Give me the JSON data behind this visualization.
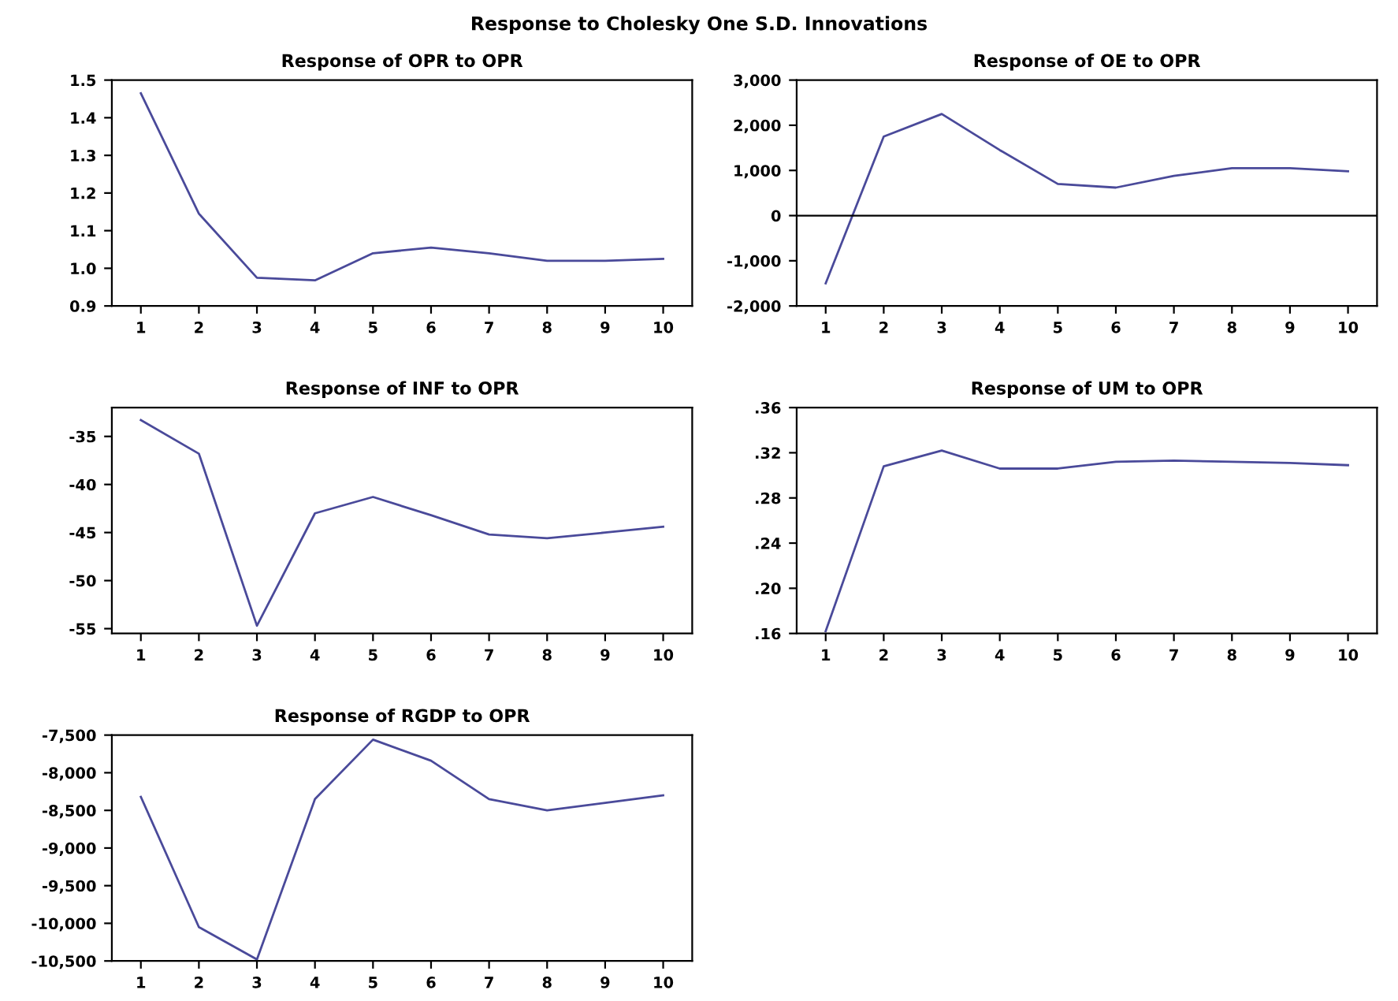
{
  "chart_data": [
    {
      "type": "line",
      "title": "Response of OPR to OPR",
      "x": [
        1,
        2,
        3,
        4,
        5,
        6,
        7,
        8,
        9,
        10
      ],
      "xlim": [
        0.5,
        10.5
      ],
      "xticks": [
        1,
        2,
        3,
        4,
        5,
        6,
        7,
        8,
        9,
        10
      ],
      "ylim": [
        0.9,
        1.5
      ],
      "yticks": [
        {
          "value": 0.9,
          "label": "0.9"
        },
        {
          "value": 1.0,
          "label": "1.0"
        },
        {
          "value": 1.1,
          "label": "1.1"
        },
        {
          "value": 1.2,
          "label": "1.2"
        },
        {
          "value": 1.3,
          "label": "1.3"
        },
        {
          "value": 1.4,
          "label": "1.4"
        },
        {
          "value": 1.5,
          "label": "1.5"
        }
      ],
      "grid": false,
      "series": [
        {
          "color": "#4a4a9a",
          "values": [
            1.465,
            1.145,
            0.975,
            0.968,
            1.04,
            1.055,
            1.04,
            1.02,
            1.02,
            1.025
          ]
        }
      ]
    },
    {
      "type": "line",
      "title": "Response of OE to OPR",
      "x": [
        1,
        2,
        3,
        4,
        5,
        6,
        7,
        8,
        9,
        10
      ],
      "xlim": [
        0.5,
        10.5
      ],
      "xticks": [
        1,
        2,
        3,
        4,
        5,
        6,
        7,
        8,
        9,
        10
      ],
      "ylim": [
        -2000,
        3000
      ],
      "yticks": [
        {
          "value": -2000,
          "label": "-2,000"
        },
        {
          "value": -1000,
          "label": "-1,000"
        },
        0,
        {
          "value": 1000,
          "label": "1,000"
        },
        {
          "value": 2000,
          "label": "2,000"
        },
        {
          "value": 3000,
          "label": "3,000"
        }
      ],
      "grid": false,
      "ref_lines": [
        {
          "axis": "y",
          "value": 0,
          "color": "#000000"
        }
      ],
      "series": [
        {
          "color": "#4a4a9a",
          "values": [
            -1500,
            1750,
            2250,
            1450,
            700,
            620,
            880,
            1050,
            1050,
            980
          ]
        }
      ]
    },
    {
      "type": "line",
      "title": "Response of INF to OPR",
      "x": [
        1,
        2,
        3,
        4,
        5,
        6,
        7,
        8,
        9,
        10
      ],
      "xlim": [
        0.5,
        10.5
      ],
      "xticks": [
        1,
        2,
        3,
        4,
        5,
        6,
        7,
        8,
        9,
        10
      ],
      "ylim": [
        -55.5,
        -32
      ],
      "yticks": [
        -55,
        -50,
        -45,
        -40,
        -35
      ],
      "grid": false,
      "series": [
        {
          "color": "#4a4a9a",
          "values": [
            -33.3,
            -36.8,
            -54.7,
            -43.0,
            -41.3,
            -43.2,
            -45.2,
            -45.6,
            -45.0,
            -44.4
          ]
        }
      ]
    },
    {
      "type": "line",
      "title": "Response of UM to OPR",
      "x": [
        1,
        2,
        3,
        4,
        5,
        6,
        7,
        8,
        9,
        10
      ],
      "xlim": [
        0.5,
        10.5
      ],
      "xticks": [
        1,
        2,
        3,
        4,
        5,
        6,
        7,
        8,
        9,
        10
      ],
      "ylim": [
        0.16,
        0.36
      ],
      "yticks": [
        {
          "value": 0.16,
          "label": ".16"
        },
        {
          "value": 0.2,
          "label": ".20"
        },
        {
          "value": 0.24,
          "label": ".24"
        },
        {
          "value": 0.28,
          "label": ".28"
        },
        {
          "value": 0.32,
          "label": ".32"
        },
        {
          "value": 0.36,
          "label": ".36"
        }
      ],
      "grid": false,
      "series": [
        {
          "color": "#4a4a9a",
          "values": [
            0.162,
            0.308,
            0.322,
            0.306,
            0.306,
            0.312,
            0.313,
            0.312,
            0.311,
            0.309
          ]
        }
      ]
    },
    {
      "type": "line",
      "title": "Response of RGDP to OPR",
      "x": [
        1,
        2,
        3,
        4,
        5,
        6,
        7,
        8,
        9,
        10
      ],
      "xlim": [
        0.5,
        10.5
      ],
      "xticks": [
        1,
        2,
        3,
        4,
        5,
        6,
        7,
        8,
        9,
        10
      ],
      "ylim": [
        -10500,
        -7500
      ],
      "yticks": [
        {
          "value": -10500,
          "label": "-10,500"
        },
        {
          "value": -10000,
          "label": "-10,000"
        },
        {
          "value": -9500,
          "label": "-9,500"
        },
        {
          "value": -9000,
          "label": "-9,000"
        },
        {
          "value": -8500,
          "label": "-8,500"
        },
        {
          "value": -8000,
          "label": "-8,000"
        },
        {
          "value": -7500,
          "label": "-7,500"
        }
      ],
      "grid": false,
      "annotations": [
        "Response to Cholesky One S.D. Innovations"
      ],
      "series": [
        {
          "color": "#4a4a9a",
          "values": [
            -8320,
            -10050,
            -10480,
            -8350,
            -7560,
            -7840,
            -8350,
            -8500,
            -8400,
            -8300
          ]
        }
      ]
    }
  ]
}
